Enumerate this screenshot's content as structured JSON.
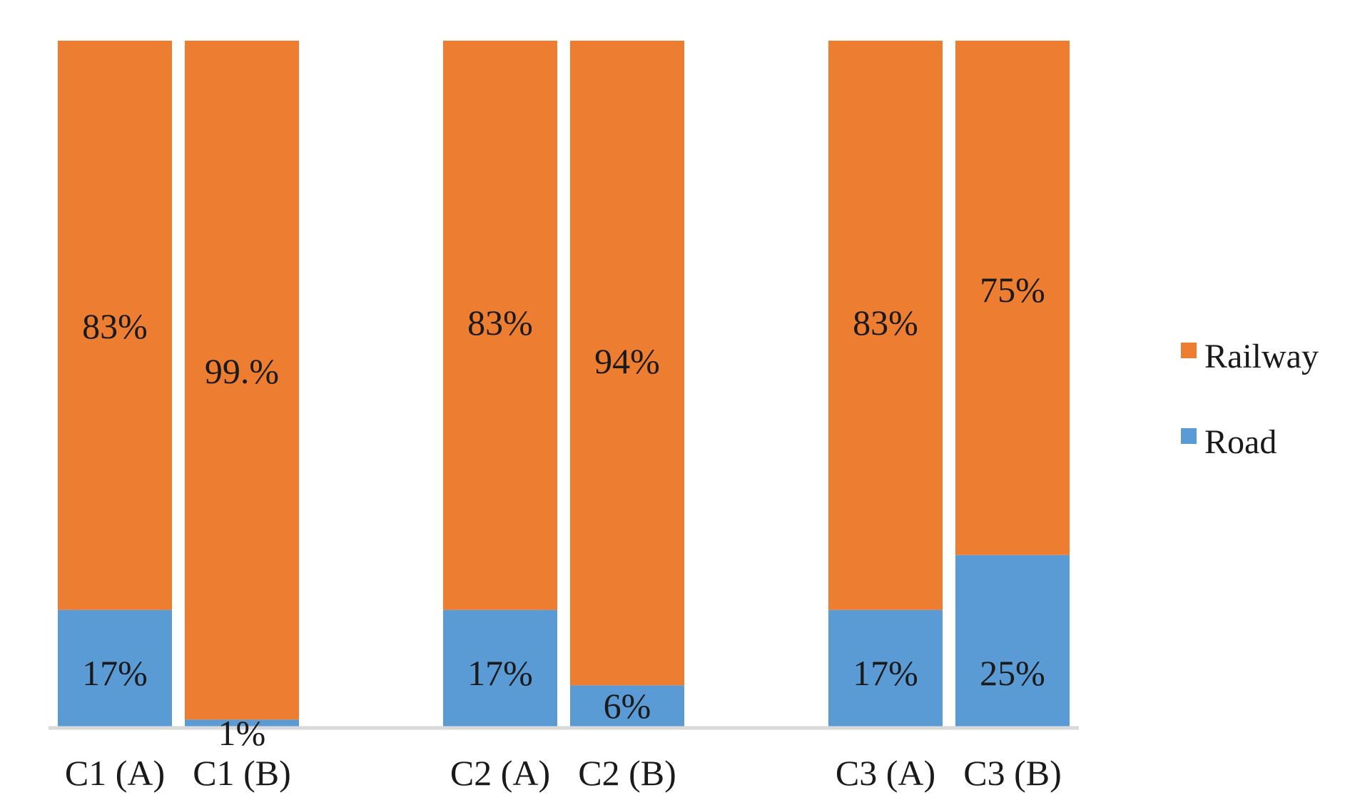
{
  "chart_data": {
    "type": "bar",
    "stacked": true,
    "title": "",
    "xlabel": "",
    "ylabel": "",
    "ylim": [
      0,
      100
    ],
    "grid": false,
    "legend_position": "right",
    "categories": [
      "C1 (A)",
      "C1 (B)",
      "C2 (A)",
      "C2 (B)",
      "C3 (A)",
      "C3 (B)"
    ],
    "groups": [
      {
        "categories": [
          "C1 (A)",
          "C1 (B)"
        ]
      },
      {
        "categories": [
          "C2 (A)",
          "C2 (B)"
        ]
      },
      {
        "categories": [
          "C3 (A)",
          "C3 (B)"
        ]
      }
    ],
    "series": [
      {
        "name": "Road",
        "color": "#5B9BD5",
        "values": [
          17,
          1,
          17,
          6,
          17,
          25
        ],
        "labels": [
          "17%",
          "1%",
          "17%",
          "6%",
          "17%",
          "25%"
        ]
      },
      {
        "name": "Railway",
        "color": "#ED7D31",
        "values": [
          83,
          99,
          83,
          94,
          83,
          75
        ],
        "labels": [
          "83%",
          "99.%",
          "83%",
          "94%",
          "83%",
          "75%"
        ]
      }
    ],
    "legend": [
      {
        "name": "Railway",
        "color": "#ED7D31"
      },
      {
        "name": "Road",
        "color": "#5B9BD5"
      }
    ],
    "axis_color": "#D9D9D9"
  }
}
